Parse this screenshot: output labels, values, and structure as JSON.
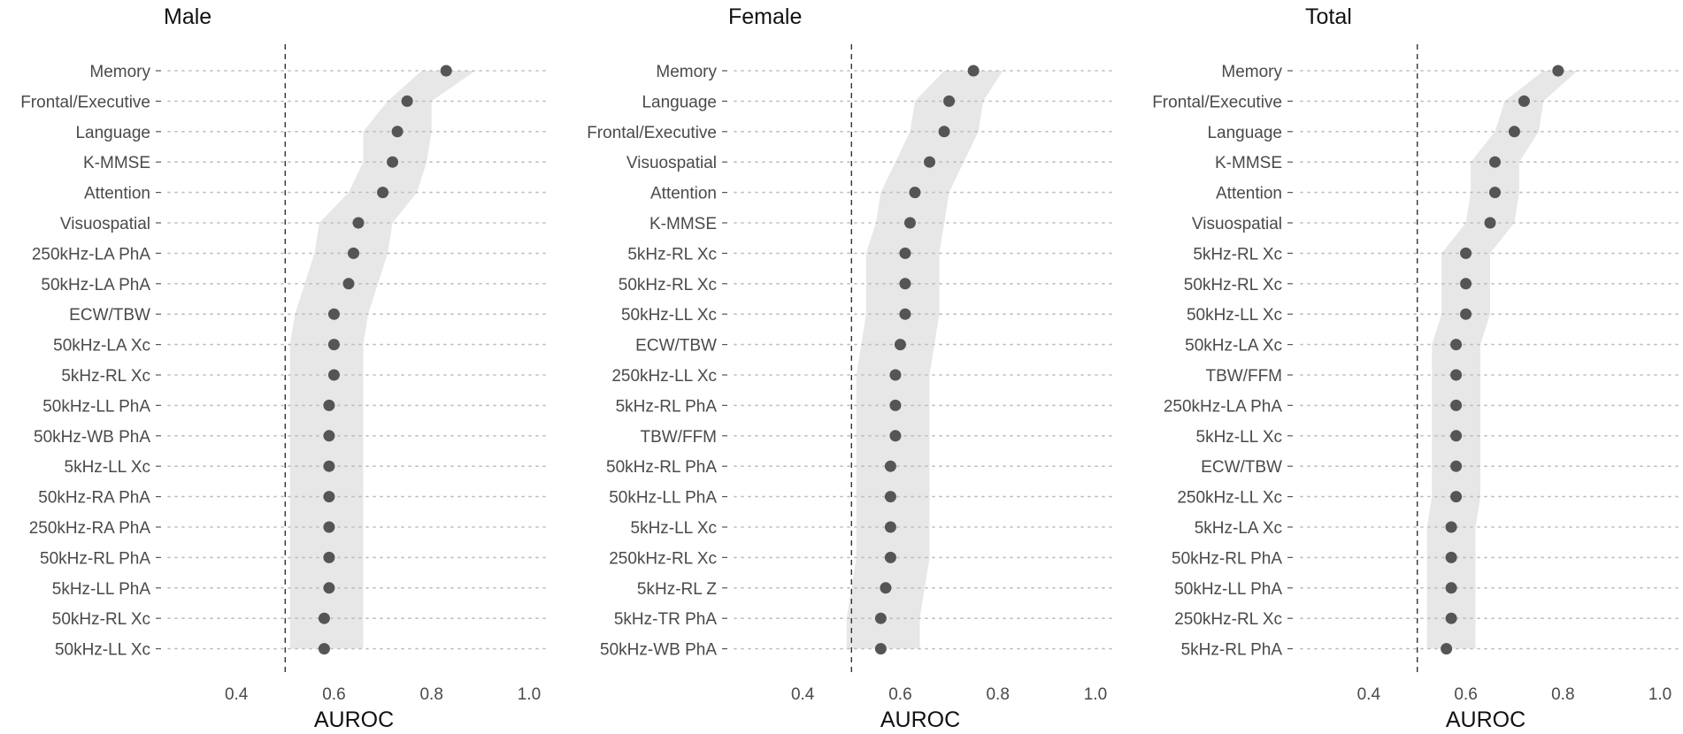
{
  "chart_data": [
    {
      "type": "dot",
      "title": "Male",
      "xlabel": "AUROC",
      "ylabel": "",
      "xlim": [
        0.26,
        1.04
      ],
      "xticks": [
        0.4,
        0.6,
        0.8,
        1.0
      ],
      "xtick_labels": [
        "0.4",
        "0.6",
        "0.8",
        "1.0"
      ],
      "reference_line": 0.5,
      "categories": [
        "Memory",
        "Frontal/Executive",
        "Language",
        "K-MMSE",
        "Attention",
        "Visuospatial",
        "250kHz-LA PhA",
        "50kHz-LA PhA",
        "ECW/TBW",
        "50kHz-LA Xc",
        "5kHz-RL Xc",
        "50kHz-LL PhA",
        "50kHz-WB PhA",
        "5kHz-LL Xc",
        "50kHz-RA PhA",
        "250kHz-RA PhA",
        "50kHz-RL PhA",
        "5kHz-LL PhA",
        "50kHz-RL Xc",
        "50kHz-LL Xc"
      ],
      "values": [
        0.83,
        0.75,
        0.73,
        0.72,
        0.7,
        0.65,
        0.64,
        0.63,
        0.6,
        0.6,
        0.6,
        0.59,
        0.59,
        0.59,
        0.59,
        0.59,
        0.59,
        0.59,
        0.58,
        0.58
      ],
      "ci_lower": [
        0.78,
        0.71,
        0.66,
        0.66,
        0.63,
        0.57,
        0.56,
        0.54,
        0.52,
        0.51,
        0.51,
        0.51,
        0.51,
        0.51,
        0.51,
        0.51,
        0.51,
        0.51,
        0.51,
        0.51
      ],
      "ci_upper": [
        0.89,
        0.8,
        0.8,
        0.79,
        0.77,
        0.72,
        0.71,
        0.69,
        0.67,
        0.66,
        0.66,
        0.66,
        0.66,
        0.66,
        0.66,
        0.66,
        0.66,
        0.66,
        0.66,
        0.66
      ]
    },
    {
      "type": "dot",
      "title": "Female",
      "xlabel": "AUROC",
      "ylabel": "",
      "xlim": [
        0.26,
        1.04
      ],
      "xticks": [
        0.4,
        0.6,
        0.8,
        1.0
      ],
      "xtick_labels": [
        "0.4",
        "0.6",
        "0.8",
        "1.0"
      ],
      "reference_line": 0.5,
      "categories": [
        "Memory",
        "Language",
        "Frontal/Executive",
        "Visuospatial",
        "Attention",
        "K-MMSE",
        "5kHz-RL Xc",
        "50kHz-RL Xc",
        "50kHz-LL Xc",
        "ECW/TBW",
        "250kHz-LL Xc",
        "5kHz-RL PhA",
        "TBW/FFM",
        "50kHz-RL PhA",
        "50kHz-LL PhA",
        "5kHz-LL Xc",
        "250kHz-RL Xc",
        "5kHz-RL Z",
        "5kHz-TR PhA",
        "50kHz-WB PhA"
      ],
      "values": [
        0.75,
        0.7,
        0.69,
        0.66,
        0.63,
        0.62,
        0.61,
        0.61,
        0.61,
        0.6,
        0.59,
        0.59,
        0.59,
        0.58,
        0.58,
        0.58,
        0.58,
        0.57,
        0.56,
        0.56
      ],
      "ci_lower": [
        0.69,
        0.63,
        0.62,
        0.59,
        0.56,
        0.55,
        0.53,
        0.53,
        0.53,
        0.52,
        0.51,
        0.51,
        0.51,
        0.51,
        0.51,
        0.51,
        0.51,
        0.5,
        0.49,
        0.49
      ],
      "ci_upper": [
        0.81,
        0.77,
        0.76,
        0.73,
        0.7,
        0.69,
        0.68,
        0.68,
        0.68,
        0.67,
        0.66,
        0.66,
        0.66,
        0.66,
        0.66,
        0.66,
        0.66,
        0.65,
        0.64,
        0.64
      ]
    },
    {
      "type": "dot",
      "title": "Total",
      "xlabel": "AUROC",
      "ylabel": "",
      "xlim": [
        0.26,
        1.04
      ],
      "xticks": [
        0.4,
        0.6,
        0.8,
        1.0
      ],
      "xtick_labels": [
        "0.4",
        "0.6",
        "0.8",
        "1.0"
      ],
      "reference_line": 0.5,
      "categories": [
        "Memory",
        "Frontal/Executive",
        "Language",
        "K-MMSE",
        "Attention",
        "Visuospatial",
        "5kHz-RL Xc",
        "50kHz-RL Xc",
        "50kHz-LL Xc",
        "50kHz-LA Xc",
        "TBW/FFM",
        "250kHz-LA PhA",
        "5kHz-LL Xc",
        "ECW/TBW",
        "250kHz-LL Xc",
        "5kHz-LA Xc",
        "50kHz-RL PhA",
        "50kHz-LL PhA",
        "250kHz-RL Xc",
        "5kHz-RL PhA"
      ],
      "values": [
        0.79,
        0.72,
        0.7,
        0.66,
        0.66,
        0.65,
        0.6,
        0.6,
        0.6,
        0.58,
        0.58,
        0.58,
        0.58,
        0.58,
        0.58,
        0.57,
        0.57,
        0.57,
        0.57,
        0.56
      ],
      "ci_lower": [
        0.76,
        0.68,
        0.66,
        0.61,
        0.61,
        0.6,
        0.55,
        0.55,
        0.55,
        0.53,
        0.53,
        0.53,
        0.53,
        0.53,
        0.53,
        0.52,
        0.52,
        0.52,
        0.52,
        0.52
      ],
      "ci_upper": [
        0.83,
        0.76,
        0.75,
        0.71,
        0.71,
        0.7,
        0.65,
        0.65,
        0.65,
        0.63,
        0.63,
        0.63,
        0.63,
        0.63,
        0.63,
        0.62,
        0.62,
        0.62,
        0.62,
        0.62
      ]
    }
  ],
  "style": {
    "point_color": "#555555",
    "band_color": "#e7e7e7",
    "dotline_color": "#bdbdbd",
    "refline_color": "#333333",
    "text_color": "#4a4a4a",
    "title_color": "#111111"
  }
}
